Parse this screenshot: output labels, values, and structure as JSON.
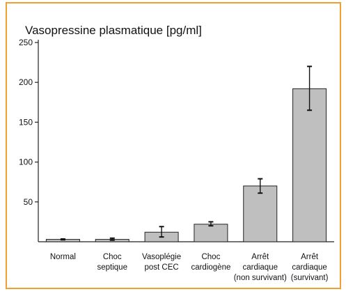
{
  "chart_data": {
    "type": "bar",
    "title": "Vasopressine plasmatique [pg/ml]",
    "xlabel": "",
    "ylabel": "",
    "ylim": [
      0,
      250
    ],
    "yticks": [
      50,
      100,
      150,
      200,
      250
    ],
    "grid": false,
    "categories": [
      [
        "Normal"
      ],
      [
        "Choc",
        "septique"
      ],
      [
        "Vasoplégie",
        "post CEC"
      ],
      [
        "Choc",
        "cardiogène"
      ],
      [
        "Arrêt",
        "cardiaque",
        "(non survivant)"
      ],
      [
        "Arrêt",
        "cardiaque",
        "(survivant)"
      ]
    ],
    "values": [
      3,
      3,
      12,
      22,
      70,
      192
    ],
    "error_low": [
      2.5,
      2,
      6,
      20,
      61,
      165
    ],
    "error_high": [
      3.5,
      4.5,
      19,
      25,
      79,
      220
    ],
    "colors": {
      "bar": "#bfbfbf",
      "bar_stroke": "#222222",
      "axis": "#222222",
      "frame": "#f0a030"
    }
  }
}
